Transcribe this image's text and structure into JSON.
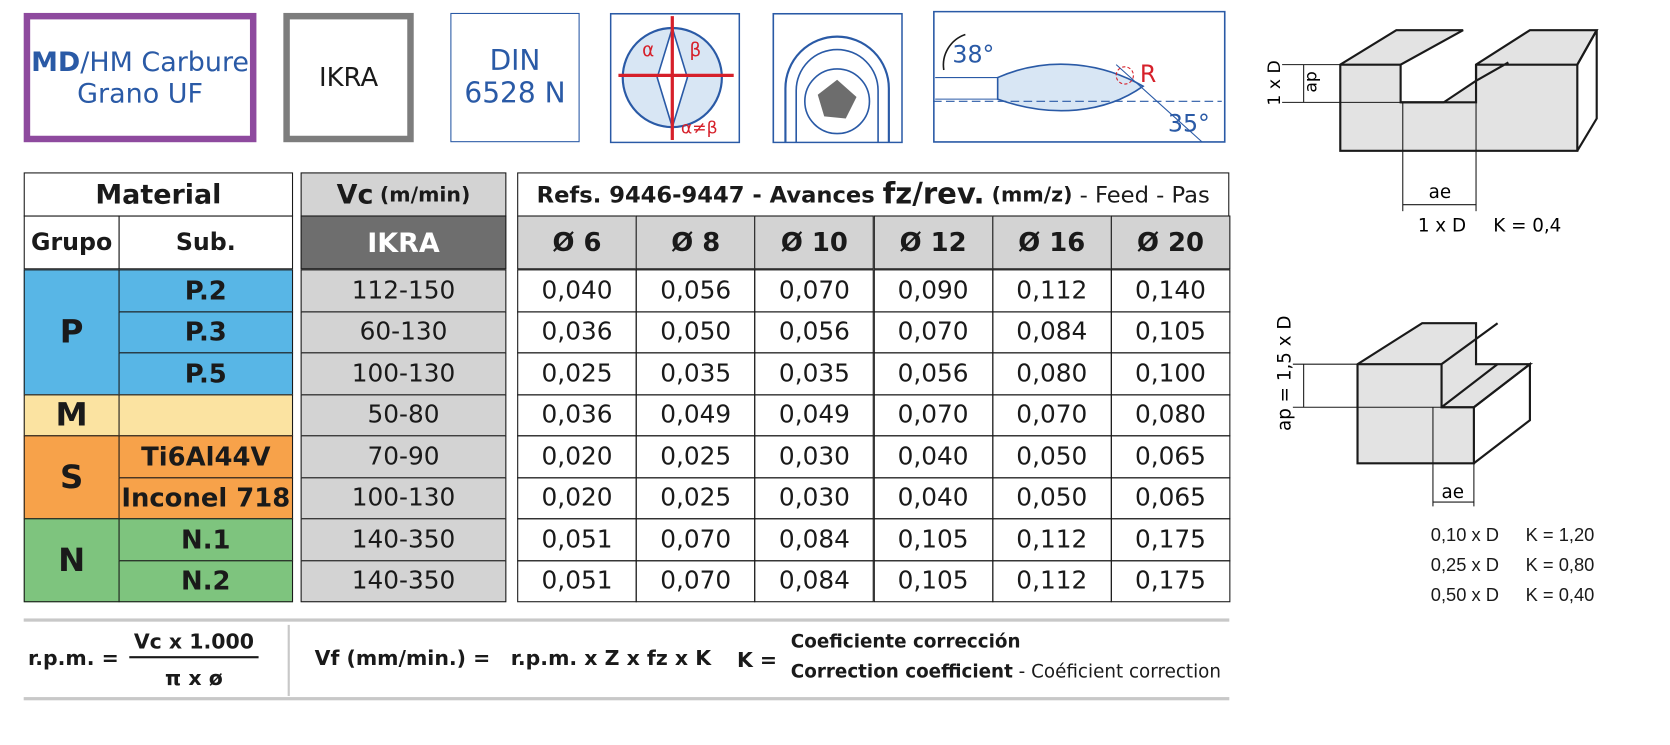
{
  "badges": {
    "material": {
      "bold": "MD",
      "rest": "/HM Carbure",
      "line2": "Grano UF"
    },
    "coating": "IKRA",
    "standard": [
      "DIN",
      "6528 N"
    ],
    "angles": {
      "alpha": "α",
      "beta": "β",
      "neq": "α≠β"
    },
    "helix": [
      "38°",
      "35°"
    ],
    "radius": "R"
  },
  "table": {
    "material_header": "Material",
    "group_header": "Grupo",
    "sub_header": "Sub.",
    "vc_header": "Vc",
    "vc_unit": "(m/min)",
    "vc_coating": "IKRA",
    "refs": {
      "a": "Refs. 9446-9447 - Avances ",
      "b": "fz/rev.",
      "c": " (mm/z)",
      "d": " - Feed",
      "e": " - Pas"
    },
    "diameters": [
      "Ø 6",
      "Ø 8",
      "Ø 10",
      "Ø 12",
      "Ø 16",
      "Ø 20"
    ],
    "groups": [
      {
        "name": "P",
        "rows": [
          {
            "sub": "P.2",
            "vc": "112-150",
            "feeds": [
              "0,040",
              "0,056",
              "0,070",
              "0,090",
              "0,112",
              "0,140"
            ]
          },
          {
            "sub": "P.3",
            "vc": "60-130",
            "feeds": [
              "0,036",
              "0,050",
              "0,056",
              "0,070",
              "0,084",
              "0,105"
            ]
          },
          {
            "sub": "P.5",
            "vc": "100-130",
            "feeds": [
              "0,025",
              "0,035",
              "0,035",
              "0,056",
              "0,080",
              "0,100"
            ]
          }
        ]
      },
      {
        "name": "M",
        "rows": [
          {
            "sub": null,
            "vc": "50-80",
            "feeds": [
              "0,036",
              "0,049",
              "0,049",
              "0,070",
              "0,070",
              "0,080"
            ]
          }
        ]
      },
      {
        "name": "S",
        "rows": [
          {
            "sub": "Ti6Al44V",
            "vc": "70-90",
            "feeds": [
              "0,020",
              "0,025",
              "0,030",
              "0,040",
              "0,050",
              "0,065"
            ]
          },
          {
            "sub": "Inconel 718",
            "vc": "100-130",
            "feeds": [
              "0,020",
              "0,025",
              "0,030",
              "0,040",
              "0,050",
              "0,065"
            ]
          }
        ]
      },
      {
        "name": "N",
        "rows": [
          {
            "sub": "N.1",
            "vc": "140-350",
            "feeds": [
              "0,051",
              "0,070",
              "0,084",
              "0,105",
              "0,112",
              "0,175"
            ]
          },
          {
            "sub": "N.2",
            "vc": "140-350",
            "feeds": [
              "0,051",
              "0,070",
              "0,084",
              "0,105",
              "0,112",
              "0,175"
            ]
          }
        ]
      }
    ]
  },
  "formula": {
    "rpm_lhs": "r.p.m. =",
    "rpm_num": "Vc x 1.000",
    "rpm_den": "π x ø",
    "vf_lhs": "Vf (mm/min.) =",
    "vf_rhs": "r.p.m. x Z x fz x K",
    "k_lhs": "K =",
    "k_es": "Coeficiente corrección",
    "k_en": "Correction coefficient",
    "k_sep": " - ",
    "k_fr": "Coéficient correction"
  },
  "diagrams": {
    "slot": {
      "ap_d": "1 x D",
      "ap": "ap",
      "ae": "ae",
      "ae_d": "1 x D",
      "k": "K = 0,4"
    },
    "side": {
      "ap": "ap = 1,5 x D",
      "ae": "ae",
      "rows": [
        [
          "0,10 x D",
          "K = 1,20"
        ],
        [
          "0,25 x D",
          "K = 0,80"
        ],
        [
          "0,50 x D",
          "K = 0,40"
        ]
      ]
    }
  }
}
